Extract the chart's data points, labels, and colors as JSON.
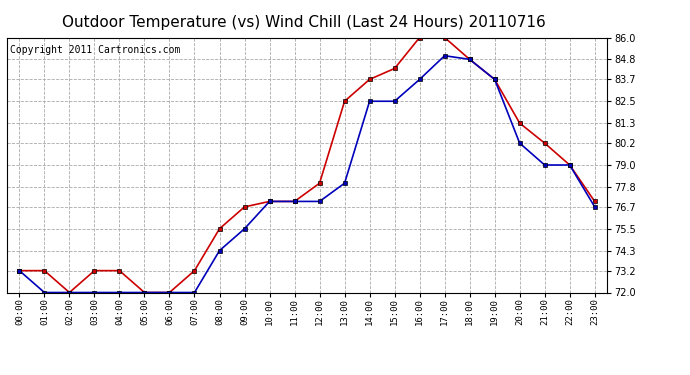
{
  "title": "Outdoor Temperature (vs) Wind Chill (Last 24 Hours) 20110716",
  "copyright": "Copyright 2011 Cartronics.com",
  "x_labels": [
    "00:00",
    "01:00",
    "02:00",
    "03:00",
    "04:00",
    "05:00",
    "06:00",
    "07:00",
    "08:00",
    "09:00",
    "10:00",
    "11:00",
    "12:00",
    "13:00",
    "14:00",
    "15:00",
    "16:00",
    "17:00",
    "18:00",
    "19:00",
    "20:00",
    "21:00",
    "22:00",
    "23:00"
  ],
  "temp_red": [
    73.2,
    73.2,
    72.0,
    73.2,
    73.2,
    72.0,
    72.0,
    73.2,
    75.5,
    76.7,
    77.0,
    77.0,
    78.0,
    82.5,
    83.7,
    84.3,
    86.0,
    86.0,
    84.8,
    83.7,
    81.3,
    80.2,
    79.0,
    77.0
  ],
  "temp_blue": [
    73.2,
    72.0,
    72.0,
    72.0,
    72.0,
    72.0,
    72.0,
    72.0,
    74.3,
    75.5,
    77.0,
    77.0,
    77.0,
    78.0,
    82.5,
    82.5,
    83.7,
    85.0,
    84.8,
    83.7,
    80.2,
    79.0,
    79.0,
    76.7
  ],
  "ylim": [
    72.0,
    86.0
  ],
  "yticks": [
    72.0,
    73.2,
    74.3,
    75.5,
    76.7,
    77.8,
    79.0,
    80.2,
    81.3,
    82.5,
    83.7,
    84.8,
    86.0
  ],
  "background_color": "#ffffff",
  "plot_background": "#ffffff",
  "grid_color": "#aaaaaa",
  "red_color": "#cc0000",
  "blue_color": "#0000bb",
  "title_fontsize": 11,
  "copyright_fontsize": 7
}
